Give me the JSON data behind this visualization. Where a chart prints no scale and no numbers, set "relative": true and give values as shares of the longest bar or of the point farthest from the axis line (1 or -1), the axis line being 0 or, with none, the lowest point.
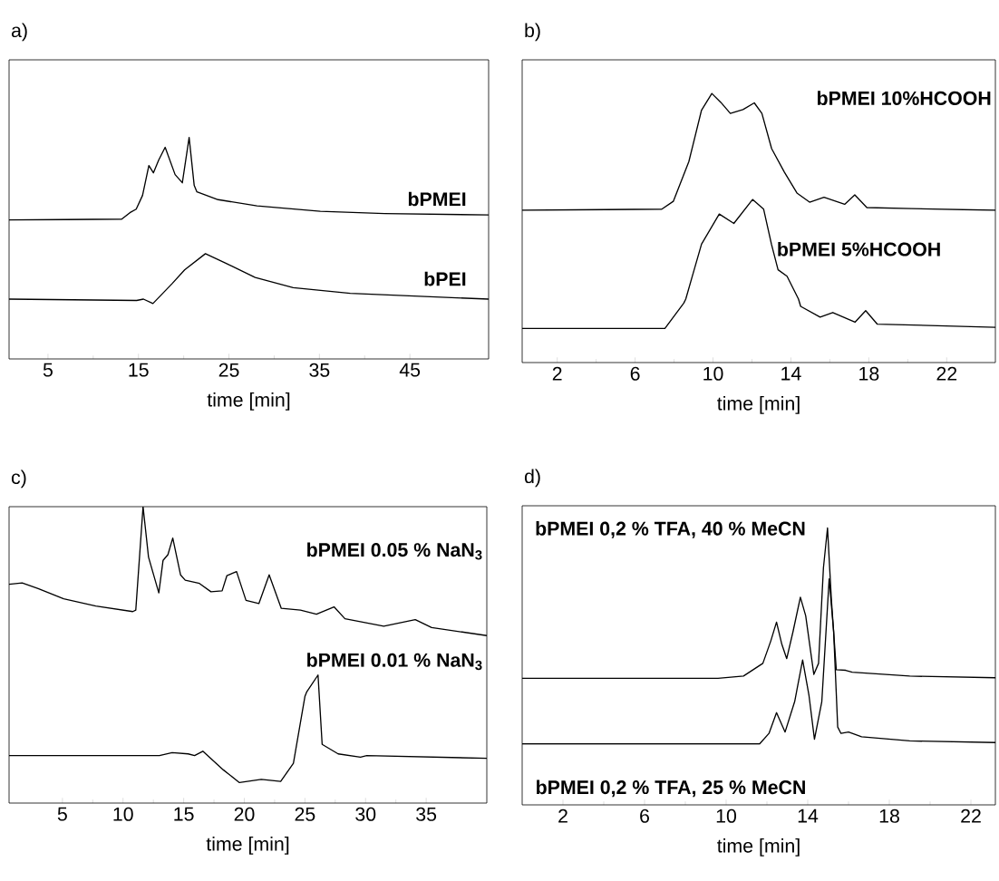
{
  "chart_data": [
    {
      "type": "line",
      "title": "a)",
      "xlabel": "time [min]",
      "relative": true,
      "xlim": [
        0.7,
        53.7
      ],
      "xticks": [
        5,
        15,
        25,
        35,
        45
      ],
      "series": [
        {
          "name": "bPMEI",
          "color": "#000000",
          "x": [
            0.7,
            13.15,
            14.05,
            14.75,
            15.45,
            16.15,
            16.65,
            17.24,
            17.95,
            19.05,
            19.85,
            20.6,
            21.16,
            21.46,
            23.8,
            28.1,
            35.1,
            42.2,
            53.7
          ],
          "values": [
            0.627,
            0.631,
            0.66,
            0.676,
            0.738,
            0.873,
            0.84,
            0.898,
            0.955,
            0.832,
            0.795,
            1,
            0.783,
            0.754,
            0.719,
            0.691,
            0.666,
            0.656,
            0.65
          ]
        },
        {
          "name": "bPEI",
          "color": "#000000",
          "x": [
            0.7,
            14.8,
            15.55,
            16.6,
            18.7,
            20.1,
            22.4,
            24.7,
            27.9,
            32.1,
            38.4,
            53.7
          ],
          "values": [
            0.27,
            0.264,
            0.27,
            0.25,
            0.339,
            0.402,
            0.475,
            0.431,
            0.368,
            0.322,
            0.296,
            0.27
          ]
        }
      ]
    },
    {
      "type": "line",
      "title": "b)",
      "xlabel": "time [min]",
      "relative": true,
      "xlim": [
        0.2,
        24.5
      ],
      "xticks": [
        2,
        6,
        10,
        14,
        18,
        22
      ],
      "series": [
        {
          "name": "bPMEI 10%HCOOH",
          "color": "#000000",
          "x": [
            0.2,
            7.37,
            7.96,
            8.76,
            9.41,
            9.94,
            10.4,
            10.89,
            11.54,
            12.12,
            12.51,
            13.01,
            13.67,
            14.31,
            14.96,
            15.7,
            16.76,
            17.28,
            17.9,
            20.18,
            24.5
          ],
          "values": [
            0.566,
            0.57,
            0.599,
            0.747,
            0.938,
            1,
            0.967,
            0.926,
            0.94,
            0.965,
            0.926,
            0.795,
            0.707,
            0.63,
            0.596,
            0.614,
            0.588,
            0.623,
            0.576,
            0.572,
            0.566
          ]
        },
        {
          "name": "bPMEI 5%HCOOH",
          "color": "#000000",
          "x": [
            0.2,
            7.53,
            8.5,
            8.6,
            9.41,
            10.32,
            11.07,
            12.03,
            12.6,
            13.0,
            13.34,
            13.8,
            14.39,
            14.5,
            15.5,
            16.15,
            17.29,
            17.84,
            18.43,
            24.5
          ],
          "values": [
            0.127,
            0.127,
            0.221,
            0.236,
            0.44,
            0.552,
            0.517,
            0.606,
            0.57,
            0.44,
            0.345,
            0.321,
            0.236,
            0.209,
            0.169,
            0.186,
            0.15,
            0.193,
            0.143,
            0.131
          ]
        }
      ]
    },
    {
      "type": "line",
      "title": "c)",
      "xlabel": "time [min]",
      "relative": true,
      "xlim": [
        0.6,
        40
      ],
      "xticks": [
        5,
        10,
        15,
        20,
        25,
        30,
        35
      ],
      "series": [
        {
          "name": "bPMEI 0.05 % NaN$_{3}$",
          "color": "#000000",
          "x": [
            0.6,
            1.68,
            3.0,
            5.1,
            7.75,
            10.8,
            11.05,
            11.65,
            12.1,
            12.95,
            13.3,
            13.7,
            14.1,
            14.74,
            15.13,
            16.3,
            17.25,
            18.17,
            18.56,
            19.36,
            20.14,
            21.2,
            22.05,
            23.05,
            24.63,
            25.95,
            27.4,
            28.3,
            31.5,
            34.1,
            35.45,
            40
          ],
          "values": [
            0.738,
            0.743,
            0.724,
            0.689,
            0.665,
            0.646,
            0.651,
            1,
            0.83,
            0.709,
            0.819,
            0.838,
            0.894,
            0.77,
            0.752,
            0.741,
            0.713,
            0.716,
            0.767,
            0.781,
            0.684,
            0.673,
            0.77,
            0.657,
            0.651,
            0.637,
            0.662,
            0.622,
            0.597,
            0.619,
            0.592,
            0.565
          ]
        },
        {
          "name": "bPMEI 0.01 % NaN$_{3}$",
          "color": "#000000",
          "x": [
            0.6,
            13.0,
            14.05,
            15.37,
            15.9,
            16.58,
            18.27,
            19.6,
            21.4,
            23.0,
            24.05,
            25.0,
            25.16,
            26.08,
            26.42,
            27.74,
            29.58,
            30.1,
            40
          ],
          "values": [
            0.16,
            0.16,
            0.17,
            0.166,
            0.16,
            0.175,
            0.112,
            0.069,
            0.08,
            0.073,
            0.134,
            0.36,
            0.376,
            0.432,
            0.198,
            0.166,
            0.155,
            0.16,
            0.151
          ]
        }
      ]
    },
    {
      "type": "line",
      "title": "d)",
      "xlabel": "time [min]",
      "relative": true,
      "xlim": [
        0,
        23.2
      ],
      "xticks": [
        2,
        6,
        10,
        14,
        18,
        22
      ],
      "series": [
        {
          "name": "bPMEI 0,2 % TFA, 40 % MeCN",
          "color": "#000000",
          "x": [
            0,
            9.6,
            10.85,
            11.8,
            12.19,
            12.47,
            12.73,
            12.97,
            13.28,
            13.64,
            13.9,
            14.3,
            14.53,
            14.77,
            14.97,
            15.16,
            15.4,
            15.86,
            16.18,
            19.0,
            23.2
          ],
          "values": [
            0.457,
            0.457,
            0.465,
            0.511,
            0.592,
            0.66,
            0.58,
            0.528,
            0.626,
            0.75,
            0.683,
            0.471,
            0.511,
            0.856,
            1,
            0.741,
            0.488,
            0.486,
            0.479,
            0.465,
            0.459
          ]
        },
        {
          "name": "bPMEI 0,2 % TFA, 25 % MeCN",
          "color": "#000000",
          "x": [
            0,
            11.64,
            12.1,
            12.47,
            12.89,
            13.36,
            13.75,
            14.06,
            14.33,
            14.69,
            15.05,
            15.27,
            15.47,
            15.63,
            16.0,
            16.64,
            19.0,
            23.2
          ],
          "values": [
            0.22,
            0.22,
            0.258,
            0.333,
            0.263,
            0.373,
            0.523,
            0.396,
            0.237,
            0.373,
            0.816,
            0.626,
            0.281,
            0.258,
            0.263,
            0.246,
            0.231,
            0.225
          ]
        }
      ]
    }
  ]
}
